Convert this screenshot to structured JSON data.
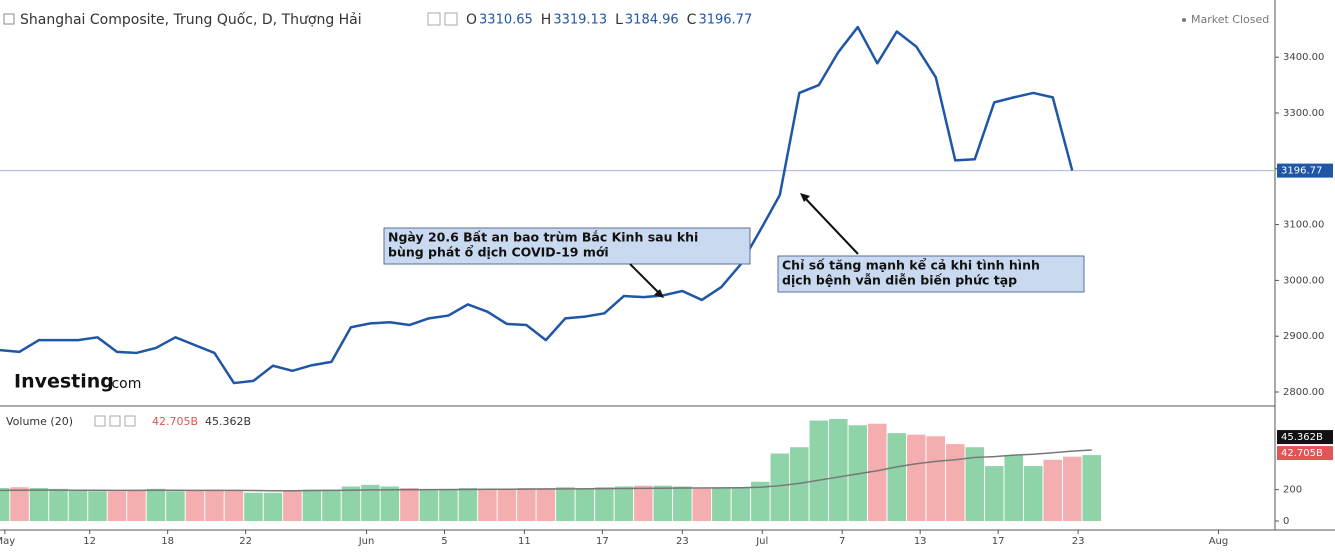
{
  "chart_data": {
    "type": "line",
    "title": "Shanghai Composite, Trung Quốc, D, Thượng Hải",
    "ohlc_labels": [
      "O",
      "H",
      "L",
      "C"
    ],
    "ohlc": [
      3310.65,
      3319.13,
      3184.96,
      3196.77
    ],
    "status": "Market Closed",
    "brand": "Investing",
    "brand_suffix": ".com",
    "annotations": [
      "Ngày 20.6 Bất an bao trùm Bắc Kinh sau khi",
      "bùng phát ổ dịch COVID-19 mới",
      "Chỉ số tăng mạnh kể cả khi tình hình",
      "dịch bệnh vẫn diễn biến phức tạp"
    ],
    "x": [
      0,
      1,
      2,
      3,
      4,
      5,
      6,
      7,
      8,
      9,
      10,
      11,
      12,
      13,
      14,
      15,
      16,
      17,
      18,
      19,
      20,
      21,
      22,
      23,
      24,
      25,
      26,
      27,
      28,
      29,
      30,
      31,
      32,
      33,
      34,
      35,
      36,
      37,
      38,
      39,
      40,
      41,
      42,
      43,
      44,
      45,
      46,
      47,
      48,
      49,
      50,
      51,
      52,
      53,
      54,
      55,
      56
    ],
    "series": [
      {
        "name": "Shanghai Composite",
        "color": "#1f56a6",
        "values": [
          2875,
          2872,
          2893,
          2893,
          2893,
          2898,
          2872,
          2870,
          2879,
          2898,
          2884,
          2870,
          2816,
          2820,
          2847,
          2838,
          2848,
          2854,
          2916,
          2923,
          2925,
          2920,
          2932,
          2937,
          2957,
          2944,
          2922,
          2920,
          2893,
          2932,
          2935,
          2941,
          2972,
          2970,
          2973,
          2981,
          2965,
          2988,
          3029,
          3090,
          3153,
          3336,
          3350,
          3409,
          3454,
          3389,
          3446,
          3419,
          3364,
          3215,
          3217,
          3319,
          3328,
          3336,
          3328,
          3196.77,
          null
        ]
      }
    ],
    "xlim": [
      0,
      65.4
    ],
    "xticks": [
      {
        "value": 0.25,
        "label": "May"
      },
      {
        "value": 4.6,
        "label": "12"
      },
      {
        "value": 8.6,
        "label": "18"
      },
      {
        "value": 12.6,
        "label": "22"
      },
      {
        "value": 18.8,
        "label": "Jun"
      },
      {
        "value": 22.8,
        "label": "5"
      },
      {
        "value": 26.9,
        "label": "11"
      },
      {
        "value": 30.9,
        "label": "17"
      },
      {
        "value": 35,
        "label": "23"
      },
      {
        "value": 39.1,
        "label": "Jul"
      },
      {
        "value": 43.2,
        "label": "7"
      },
      {
        "value": 47.2,
        "label": "13"
      },
      {
        "value": 51.2,
        "label": "17"
      },
      {
        "value": 55.3,
        "label": "23"
      },
      {
        "value": 62.5,
        "label": "Aug"
      }
    ],
    "ylim": [
      2776.7,
      3502.5
    ],
    "yticks": [
      {
        "value": 2800,
        "label": "2800.00"
      },
      {
        "value": 2900,
        "label": "2900.00"
      },
      {
        "value": 3000,
        "label": "3000.00"
      },
      {
        "value": 3100,
        "label": "3100.00"
      },
      {
        "value": 3200,
        "label": "3200.00"
      },
      {
        "value": 3300,
        "label": "3300.00"
      },
      {
        "value": 3400,
        "label": "3400.00"
      }
    ],
    "volume": {
      "title": "Volume (20)",
      "last_label": "42.705B",
      "ma_label": "45.362B",
      "up_color": "#8fd3a9",
      "down_color": "#f5aeb0",
      "ma_color": "#777777",
      "values": [
        210,
        215,
        210,
        205,
        195,
        190,
        190,
        200,
        205,
        190,
        195,
        200,
        195,
        180,
        180,
        195,
        200,
        200,
        220,
        230,
        220,
        210,
        200,
        205,
        210,
        205,
        205,
        210,
        210,
        215,
        210,
        215,
        220,
        225,
        225,
        220,
        205,
        210,
        215,
        250,
        430,
        470,
        640,
        650,
        610,
        620,
        560,
        550,
        540,
        490,
        470,
        350,
        420,
        350,
        390,
        410,
        420
      ],
      "ma": [
        195,
        196,
        197,
        197,
        196,
        196,
        195,
        195,
        196,
        196,
        195,
        195,
        195,
        194,
        193,
        193,
        194,
        195,
        196,
        198,
        199,
        199,
        200,
        200,
        201,
        202,
        202,
        203,
        204,
        205,
        205,
        206,
        207,
        208,
        209,
        210,
        210,
        211,
        212,
        215,
        225,
        240,
        260,
        280,
        300,
        320,
        345,
        365,
        380,
        390,
        405,
        410,
        420,
        425,
        435,
        445,
        452
      ],
      "ylim": [
        0,
        720
      ],
      "yticks": [
        0,
        200
      ]
    }
  }
}
